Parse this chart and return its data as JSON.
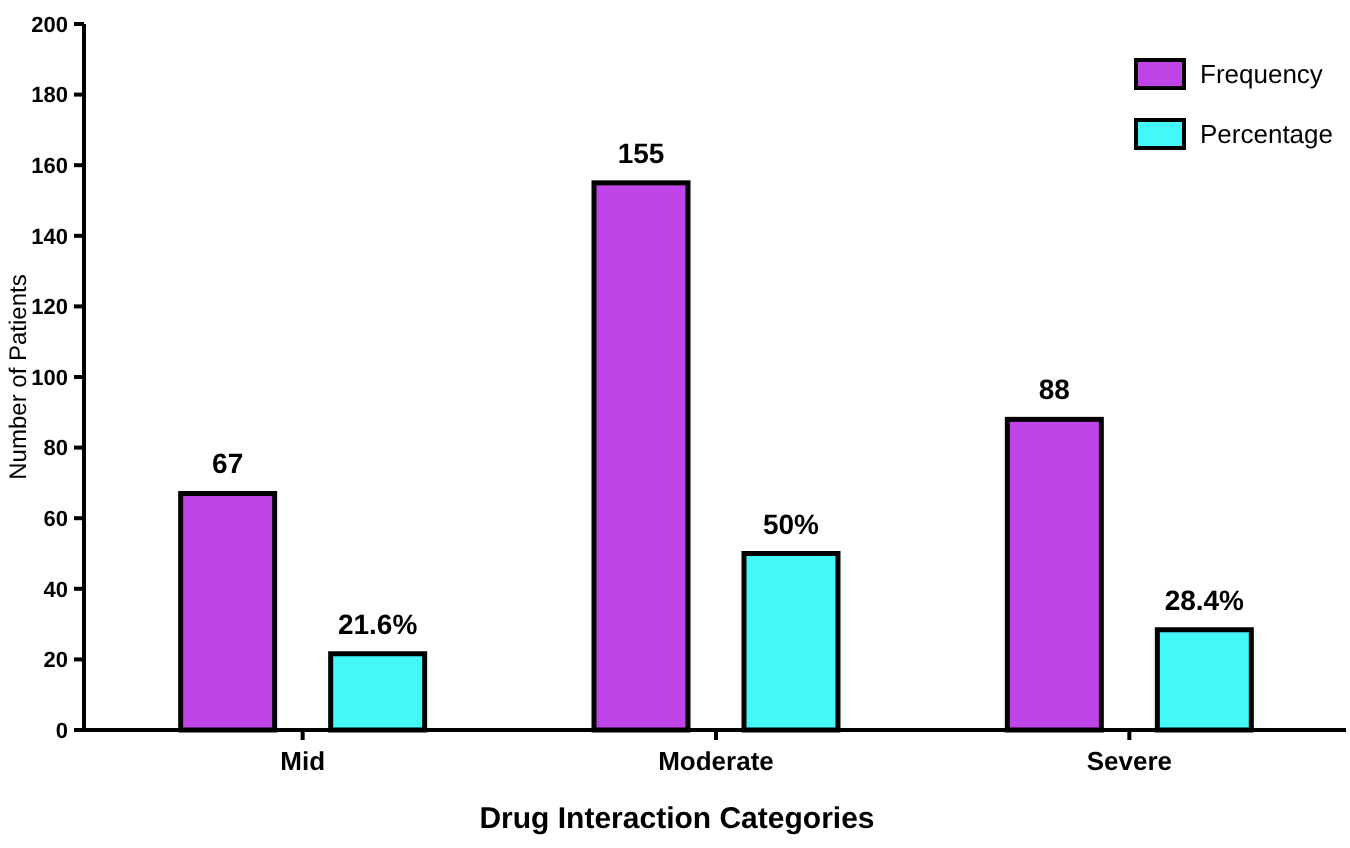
{
  "chart_data": {
    "type": "bar",
    "xlabel": "Drug Interaction Categories",
    "ylabel": "Number of Patients",
    "categories": [
      "Mid",
      "Moderate",
      "Severe"
    ],
    "series": [
      {
        "name": "Frequency",
        "color": "#bf45e8",
        "values": [
          67,
          155,
          88
        ],
        "value_labels": [
          "67",
          "155",
          "88"
        ]
      },
      {
        "name": "Percentage",
        "color": "#45f8f8",
        "values": [
          21.6,
          50,
          28.4
        ],
        "value_labels": [
          "21.6%",
          "50%",
          "28.4%"
        ]
      }
    ],
    "ylim": [
      0,
      200
    ],
    "yticks": [
      0,
      20,
      40,
      60,
      80,
      100,
      120,
      140,
      160,
      180,
      200
    ],
    "grid": false,
    "legend": "top right"
  }
}
